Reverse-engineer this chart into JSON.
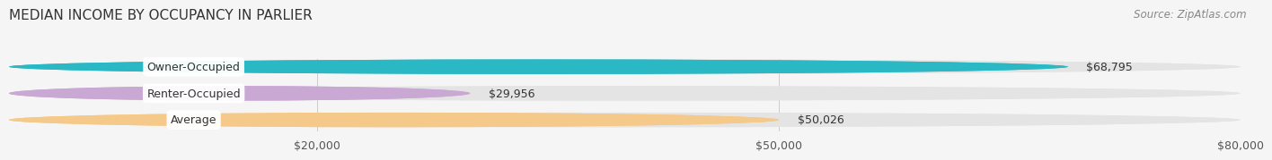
{
  "title": "MEDIAN INCOME BY OCCUPANCY IN PARLIER",
  "source": "Source: ZipAtlas.com",
  "categories": [
    "Owner-Occupied",
    "Renter-Occupied",
    "Average"
  ],
  "values": [
    68795,
    29956,
    50026
  ],
  "bar_colors": [
    "#2ab8c5",
    "#c9a8d4",
    "#f5c98a"
  ],
  "bar_labels": [
    "$68,795",
    "$29,956",
    "$50,026"
  ],
  "xlim": [
    0,
    80000
  ],
  "xticks": [
    0,
    20000,
    50000,
    80000
  ],
  "xtick_labels": [
    "",
    "$20,000",
    "$50,000",
    "$80,000"
  ],
  "background_color": "#f5f5f5",
  "bar_bg_color": "#e4e4e4",
  "title_fontsize": 11,
  "label_fontsize": 9,
  "source_fontsize": 8.5
}
